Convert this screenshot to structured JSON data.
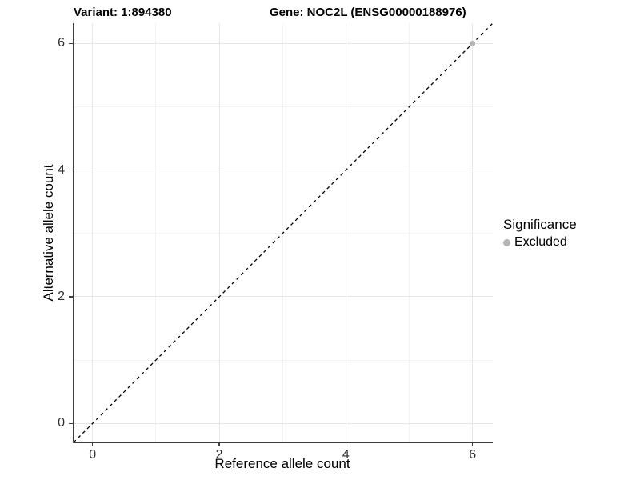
{
  "header": {
    "variant_title": "Variant: 1:894380",
    "gene_title": "Gene: NOC2L (ENSG00000188976)"
  },
  "chart_data": {
    "type": "scatter",
    "title": "Variant: 1:894380   Gene: NOC2L (ENSG00000188976)",
    "xlabel": "Reference allele count",
    "ylabel": "Alternative allele count",
    "xlim": [
      -0.3,
      6.32
    ],
    "ylim": [
      -0.3,
      6.32
    ],
    "x_ticks": [
      0,
      2,
      4,
      6
    ],
    "y_ticks": [
      0,
      2,
      4,
      6
    ],
    "x_minor_ticks": [
      1,
      3,
      5
    ],
    "y_minor_ticks": [
      1,
      3,
      5
    ],
    "grid": "major and minor, light grey on white",
    "series": [
      {
        "name": "Excluded",
        "marker": "circle",
        "color": "#b5b5b5",
        "points": [
          {
            "x": 6,
            "y": 6
          }
        ]
      }
    ],
    "reference_line": {
      "kind": "identity",
      "equation": "y = x",
      "style": "dashed",
      "color": "#000000"
    },
    "legend": {
      "title": "Significance",
      "position": "right",
      "items": [
        {
          "label": "Excluded",
          "color": "#b5b5b5",
          "marker": "circle"
        }
      ]
    }
  },
  "colors": {
    "background": "#ffffff",
    "axis_line": "#3c3c3c",
    "tick_label": "#303030",
    "grid_major": "#e7e7e7",
    "grid_minor": "#f3f3f3",
    "point": "#b5b5b5",
    "reference_line": "#000000"
  }
}
